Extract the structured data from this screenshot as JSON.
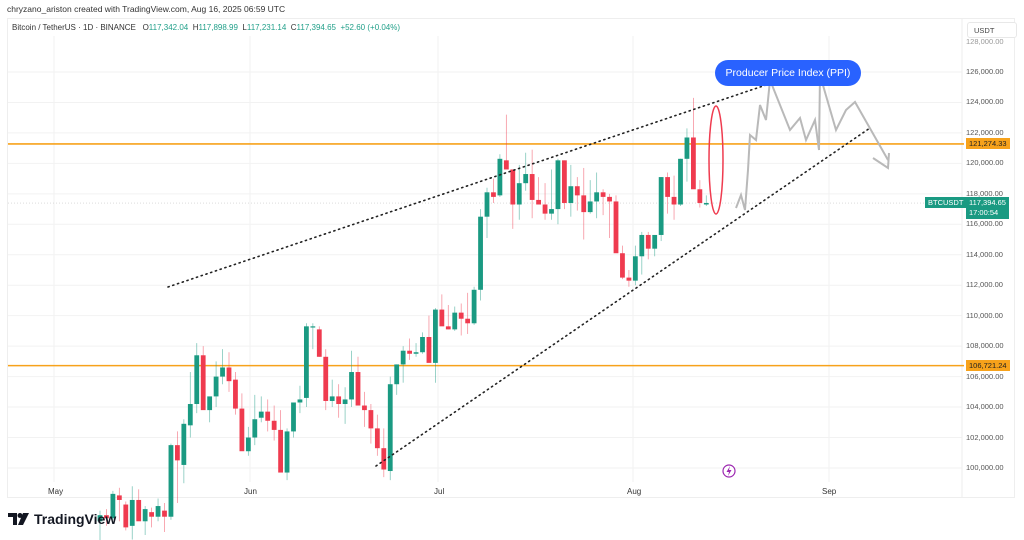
{
  "header": {
    "credit": "chryzano_ariston created with TradingView.com, Aug 16, 2025 06:59 UTC",
    "symbol": "Bitcoin / TetherUS · 1D · BINANCE",
    "open_label": "O",
    "open": "117,342.04",
    "high_label": "H",
    "high": "117,898.99",
    "low_label": "L",
    "low": "117,231.14",
    "close_label": "C",
    "close": "117,394.65",
    "change": "+52.60 (+0.04%)"
  },
  "axis": {
    "currency": "USDT",
    "ticks": [
      "128,000.00",
      "126,000.00",
      "124,000.00",
      "122,000.00",
      "120,000.00",
      "118,000.00",
      "116,000.00",
      "114,000.00",
      "112,000.00",
      "110,000.00",
      "108,000.00",
      "106,000.00",
      "104,000.00",
      "102,000.00",
      "100,000.00"
    ],
    "months": [
      "May",
      "Jun",
      "Jul",
      "Aug",
      "Sep"
    ]
  },
  "levels": {
    "resistance": "121,274.33",
    "support": "106,721.24",
    "level_color": "#f7a21b"
  },
  "current": {
    "ticker": "BTCUSDT",
    "price": "117,394.65",
    "countdown": "17:00:54",
    "color": "#1a9a82"
  },
  "annotation": {
    "ppi_label": "Producer Price Index (PPI)",
    "ppi_color": "#2962ff"
  },
  "colors": {
    "up": "#1a9a82",
    "down": "#ef3b4f"
  },
  "brand": {
    "name": "TradingView",
    "logo": "tradingview-logo"
  },
  "chart_data": {
    "type": "candlestick",
    "title": "Bitcoin / TetherUS · 1D · BINANCE",
    "xlabel": "",
    "ylabel": "USDT",
    "ylim": [
      99000,
      128000
    ],
    "categories_months": [
      "May",
      "Jun",
      "Jul",
      "Aug",
      "Sep"
    ],
    "horizontal_levels": [
      121274.33,
      106721.24
    ],
    "last_close": 117394.65,
    "candles_ohlc_approx": [
      [
        96500,
        97200,
        93800,
        96900
      ],
      [
        96900,
        97300,
        96200,
        96700
      ],
      [
        96700,
        98500,
        96600,
        98300
      ],
      [
        98200,
        98700,
        96500,
        97900
      ],
      [
        97600,
        97800,
        95900,
        96100
      ],
      [
        96200,
        98800,
        95300,
        97900
      ],
      [
        97900,
        98600,
        96800,
        96500
      ],
      [
        96500,
        97500,
        95600,
        97300
      ],
      [
        97100,
        97400,
        96100,
        96800
      ],
      [
        96800,
        98000,
        96500,
        97500
      ],
      [
        97200,
        97700,
        95800,
        96800
      ],
      [
        96800,
        101600,
        96600,
        101500
      ],
      [
        101500,
        102400,
        97700,
        100500
      ],
      [
        100200,
        103200,
        99000,
        102900
      ],
      [
        102800,
        106300,
        102000,
        104200
      ],
      [
        104200,
        108200,
        103600,
        107400
      ],
      [
        107400,
        108000,
        104000,
        103800
      ],
      [
        103800,
        104500,
        103000,
        104700
      ],
      [
        104700,
        107000,
        104000,
        106000
      ],
      [
        106000,
        107800,
        105500,
        106600
      ],
      [
        106600,
        107600,
        105000,
        105700
      ],
      [
        105800,
        106300,
        103500,
        103900
      ],
      [
        103900,
        104900,
        101700,
        101100
      ],
      [
        101100,
        102700,
        100800,
        102000
      ],
      [
        102000,
        104800,
        101500,
        103200
      ],
      [
        103300,
        104700,
        103000,
        103700
      ],
      [
        103700,
        104500,
        102400,
        103100
      ],
      [
        103100,
        104100,
        101800,
        102500
      ],
      [
        102500,
        103800,
        100700,
        99700
      ],
      [
        99700,
        102600,
        99200,
        102400
      ],
      [
        102400,
        104300,
        102000,
        104300
      ],
      [
        104300,
        105400,
        103600,
        104500
      ],
      [
        104600,
        109500,
        104000,
        109300
      ],
      [
        109300,
        109500,
        107800,
        109300
      ],
      [
        109100,
        109300,
        107300,
        107300
      ],
      [
        107300,
        107800,
        103800,
        104400
      ],
      [
        104400,
        105800,
        104000,
        104700
      ],
      [
        104700,
        105500,
        103300,
        104200
      ],
      [
        104200,
        105300,
        102900,
        104500
      ],
      [
        104500,
        107700,
        104000,
        106300
      ],
      [
        106300,
        107300,
        104100,
        104100
      ],
      [
        104100,
        105000,
        102700,
        103800
      ],
      [
        103800,
        104200,
        101600,
        102600
      ],
      [
        102600,
        103500,
        100800,
        101300
      ],
      [
        101300,
        102600,
        99400,
        99900
      ],
      [
        99800,
        106000,
        99200,
        105500
      ],
      [
        105500,
        106800,
        104800,
        106800
      ],
      [
        106800,
        108000,
        105600,
        107700
      ],
      [
        107700,
        108500,
        107100,
        107500
      ],
      [
        107500,
        108200,
        107300,
        107600
      ],
      [
        107600,
        108900,
        107500,
        108600
      ],
      [
        108600,
        110000,
        107900,
        106900
      ],
      [
        106900,
        110500,
        105600,
        110400
      ],
      [
        110400,
        111400,
        109600,
        109300
      ],
      [
        109300,
        110700,
        109100,
        109100
      ],
      [
        109100,
        110600,
        109000,
        110200
      ],
      [
        110200,
        110800,
        108700,
        109800
      ],
      [
        109800,
        111500,
        108800,
        109500
      ],
      [
        109500,
        111900,
        109400,
        111700
      ],
      [
        111700,
        117000,
        111000,
        116500
      ],
      [
        116500,
        118400,
        115100,
        118100
      ],
      [
        118100,
        119000,
        117400,
        117800
      ],
      [
        117900,
        120600,
        117800,
        120300
      ],
      [
        120200,
        123200,
        119800,
        119600
      ],
      [
        119600,
        119600,
        115700,
        117300
      ],
      [
        117300,
        119900,
        116300,
        118700
      ],
      [
        118700,
        120700,
        118200,
        119300
      ],
      [
        119300,
        120900,
        116400,
        117600
      ],
      [
        117600,
        119100,
        117400,
        117300
      ],
      [
        117300,
        118700,
        116300,
        116700
      ],
      [
        116700,
        119600,
        116300,
        117000
      ],
      [
        117000,
        120300,
        116000,
        120200
      ],
      [
        120200,
        120200,
        117000,
        117400
      ],
      [
        117400,
        119900,
        116500,
        118500
      ],
      [
        118500,
        119100,
        116900,
        117900
      ],
      [
        117900,
        119700,
        115000,
        116800
      ],
      [
        116800,
        118900,
        116700,
        117500
      ],
      [
        117500,
        119400,
        116400,
        118100
      ],
      [
        118100,
        118300,
        116600,
        117800
      ],
      [
        117800,
        118000,
        115100,
        117500
      ],
      [
        117500,
        117900,
        114800,
        114100
      ],
      [
        114100,
        114600,
        112400,
        112500
      ],
      [
        112500,
        113000,
        111900,
        112300
      ],
      [
        112300,
        114600,
        112000,
        113900
      ],
      [
        113900,
        115500,
        112700,
        115300
      ],
      [
        115300,
        115500,
        113700,
        114400
      ],
      [
        114400,
        115200,
        113900,
        115300
      ],
      [
        115300,
        119100,
        114900,
        119100
      ],
      [
        119100,
        119400,
        116700,
        117800
      ],
      [
        117800,
        119200,
        116300,
        117300
      ],
      [
        117300,
        120300,
        117200,
        120300
      ],
      [
        120300,
        122300,
        118800,
        121700
      ],
      [
        121700,
        124300,
        119000,
        118300
      ],
      [
        118300,
        118900,
        117100,
        117400
      ],
      [
        117300,
        117900,
        117200,
        117400
      ]
    ]
  }
}
